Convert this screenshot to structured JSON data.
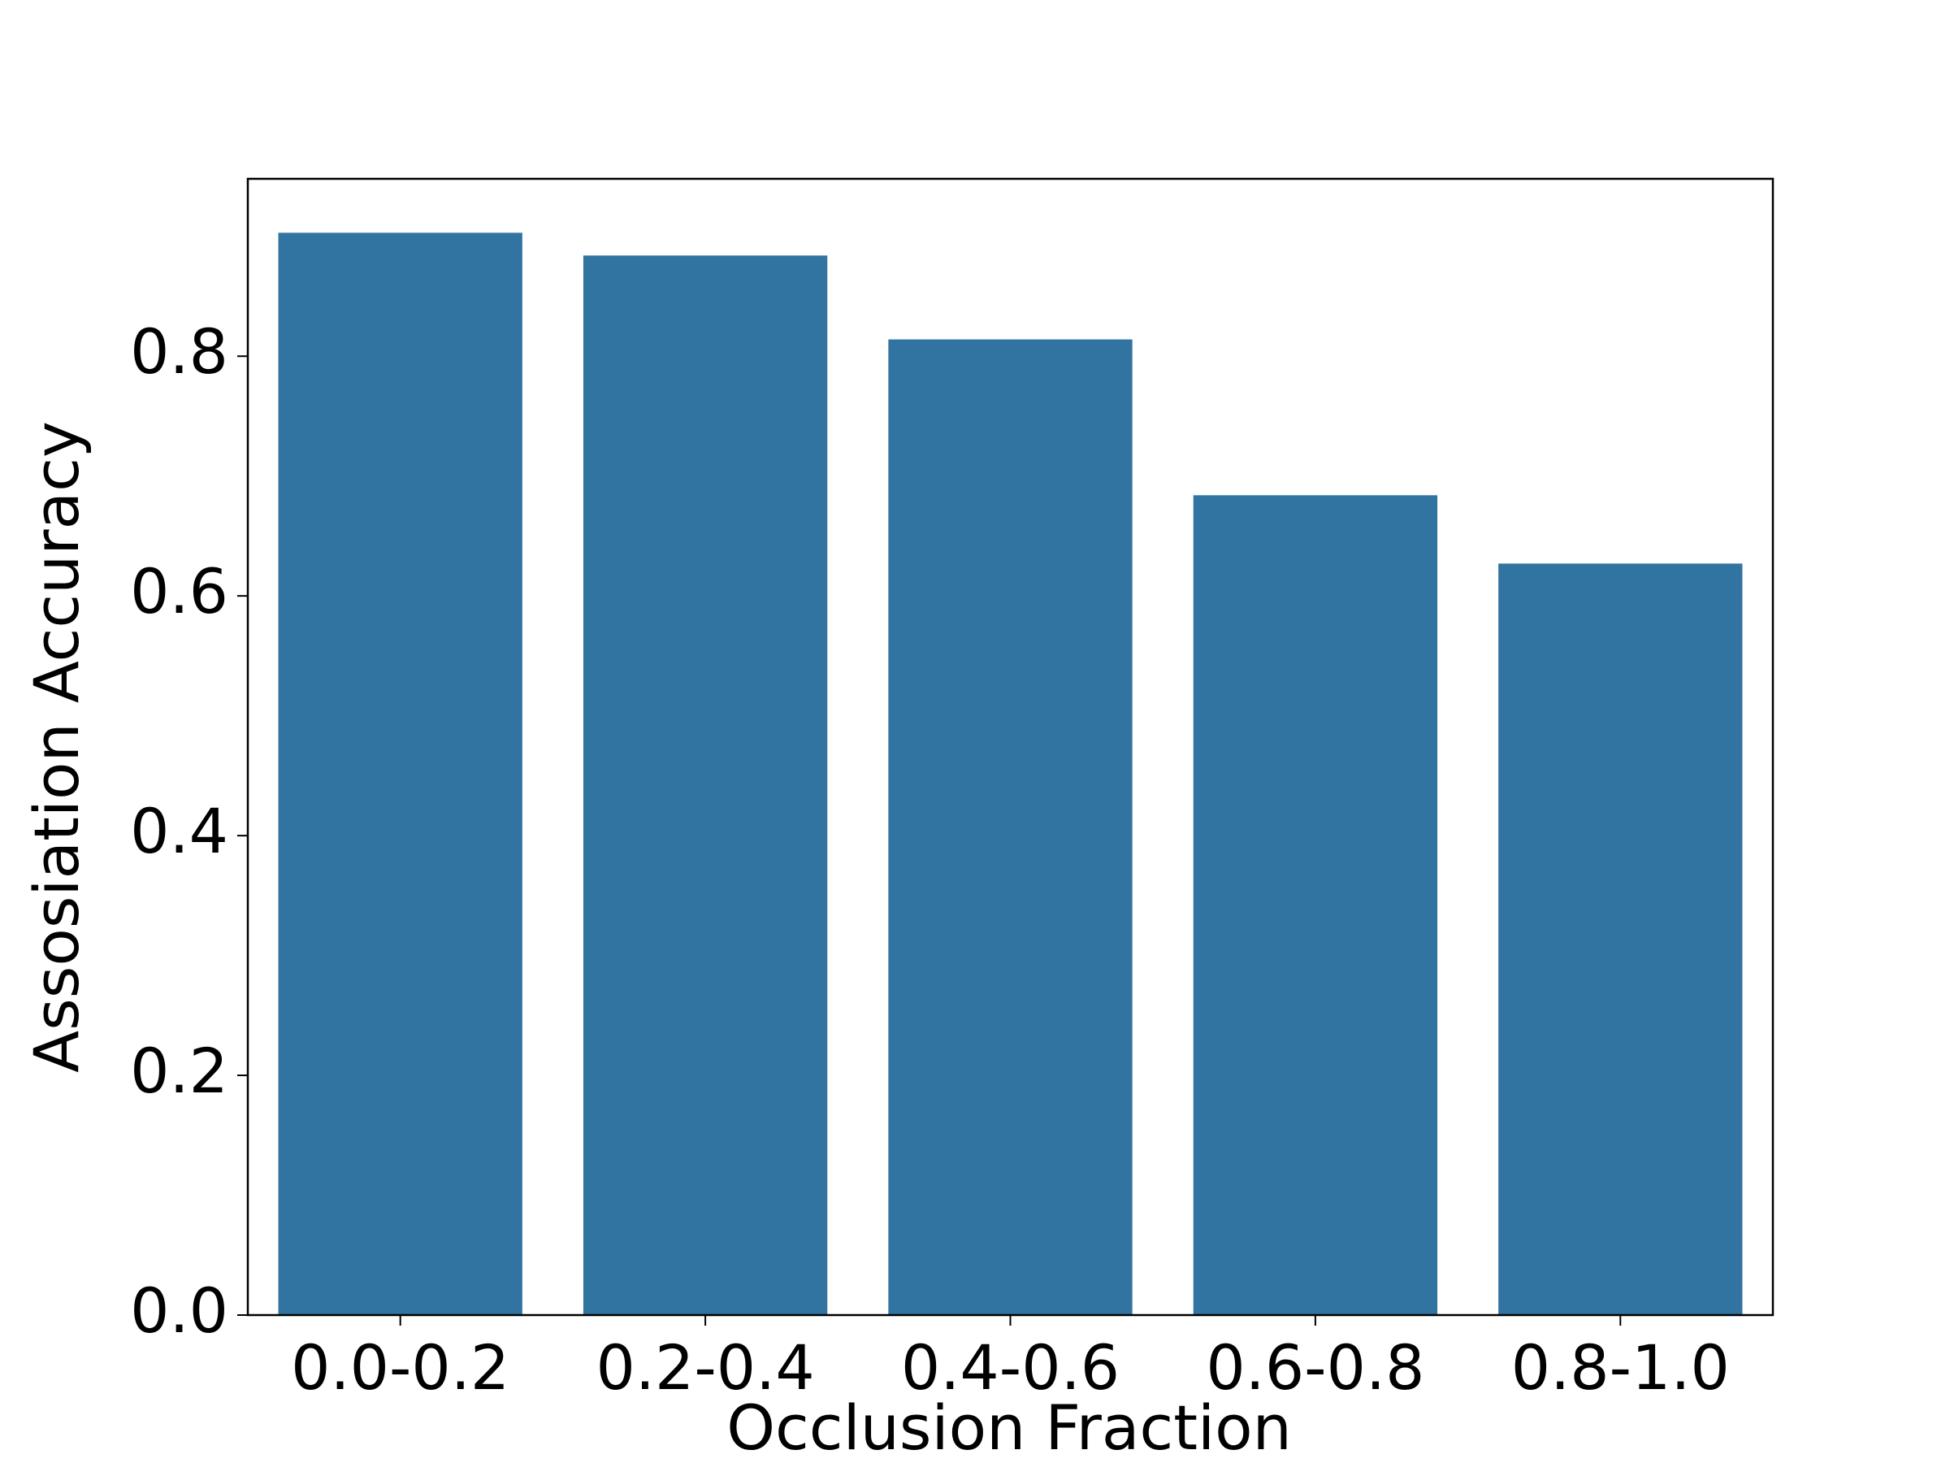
{
  "chart_data": {
    "type": "bar",
    "x_label": "Occlusion Fraction",
    "y_label": "Assosiation Accuracy",
    "categories": [
      "0.0-0.2",
      "0.2-0.4",
      "0.4-0.6",
      "0.6-0.8",
      "0.8-1.0"
    ],
    "values": [
      0.903,
      0.884,
      0.814,
      0.684,
      0.627
    ],
    "color": "#3274a1",
    "ylim": [
      0,
      0.948
    ],
    "yticks": [
      {
        "value": 0,
        "label": "0.0"
      },
      0.2,
      0.4,
      0.6,
      0.8
    ],
    "grid": false
  }
}
